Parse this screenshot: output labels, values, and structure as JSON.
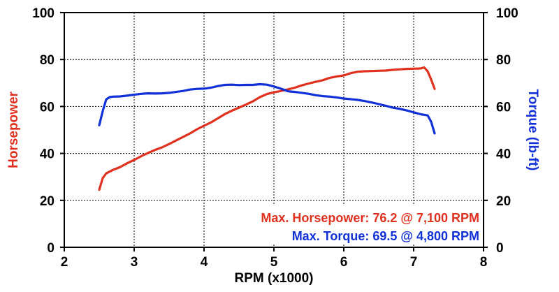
{
  "chart_data": {
    "type": "line",
    "xlabel": "RPM (x1000)",
    "ylabel_left": "Horsepower",
    "ylabel_right": "Torque (lb-ft)",
    "xlim": [
      2,
      8
    ],
    "ylim_left": [
      0,
      100
    ],
    "ylim_right": [
      0,
      100
    ],
    "x_ticks": [
      "2",
      "3",
      "4",
      "5",
      "6",
      "7",
      "8"
    ],
    "y_ticks_left": [
      "0",
      "20",
      "40",
      "60",
      "80",
      "100"
    ],
    "y_ticks_right": [
      "0",
      "20",
      "40",
      "60",
      "80",
      "100"
    ],
    "grid": "dashed",
    "colors": {
      "horsepower": "#e0301e",
      "torque": "#1030d8"
    },
    "series": [
      {
        "name": "Horsepower",
        "axis": "left",
        "x": [
          2.5,
          2.55,
          2.6,
          2.7,
          2.8,
          2.9,
          3.0,
          3.1,
          3.2,
          3.3,
          3.4,
          3.5,
          3.6,
          3.7,
          3.8,
          3.9,
          4.0,
          4.1,
          4.2,
          4.3,
          4.4,
          4.5,
          4.6,
          4.7,
          4.8,
          4.9,
          5.0,
          5.1,
          5.2,
          5.3,
          5.4,
          5.5,
          5.6,
          5.7,
          5.8,
          5.9,
          6.0,
          6.1,
          6.2,
          6.3,
          6.4,
          6.5,
          6.6,
          6.7,
          6.8,
          6.9,
          7.0,
          7.1,
          7.15,
          7.2,
          7.25,
          7.3
        ],
        "y": [
          24.5,
          29.5,
          31.5,
          33,
          34.2,
          35.8,
          37.2,
          38.8,
          40.2,
          41.5,
          42.6,
          44,
          45.5,
          47,
          48.5,
          50.3,
          51.8,
          53.2,
          55,
          56.8,
          58.2,
          59.5,
          60.8,
          62.2,
          64,
          65.3,
          66,
          66.6,
          67.3,
          68,
          69,
          69.8,
          70.5,
          71.2,
          72.2,
          72.8,
          73.2,
          74.2,
          74.8,
          75,
          75.1,
          75.2,
          75.3,
          75.6,
          75.8,
          76,
          76.1,
          76.2,
          76.6,
          75,
          71.5,
          67.5
        ]
      },
      {
        "name": "Torque",
        "axis": "right",
        "x": [
          2.5,
          2.55,
          2.6,
          2.65,
          2.7,
          2.8,
          2.9,
          3.0,
          3.1,
          3.2,
          3.3,
          3.4,
          3.5,
          3.6,
          3.7,
          3.8,
          3.9,
          4.0,
          4.1,
          4.2,
          4.3,
          4.4,
          4.5,
          4.6,
          4.7,
          4.8,
          4.9,
          5.0,
          5.1,
          5.2,
          5.3,
          5.4,
          5.5,
          5.6,
          5.7,
          5.8,
          5.9,
          6.0,
          6.1,
          6.2,
          6.3,
          6.4,
          6.5,
          6.6,
          6.7,
          6.8,
          6.9,
          7.0,
          7.1,
          7.2,
          7.25,
          7.3
        ],
        "y": [
          52,
          58,
          63,
          64,
          64.2,
          64.3,
          64.6,
          65,
          65.4,
          65.6,
          65.5,
          65.6,
          65.8,
          66.2,
          66.6,
          67.2,
          67.5,
          67.6,
          68,
          68.7,
          69.2,
          69.3,
          69.1,
          69.2,
          69.2,
          69.5,
          69.3,
          68.5,
          67.6,
          66.5,
          66.2,
          65.8,
          65.4,
          64.8,
          64.4,
          64.2,
          63.8,
          63.4,
          63.1,
          62.8,
          62.3,
          61.7,
          61,
          60.3,
          59.5,
          59,
          58.3,
          57.5,
          56.7,
          56.2,
          53.5,
          48.5
        ]
      }
    ],
    "annotations": [
      {
        "text": "Max. Horsepower: 76.2 @ 7,100 RPM",
        "series": "Horsepower"
      },
      {
        "text": "Max. Torque: 69.5 @ 4,800 RPM",
        "series": "Torque"
      }
    ]
  }
}
